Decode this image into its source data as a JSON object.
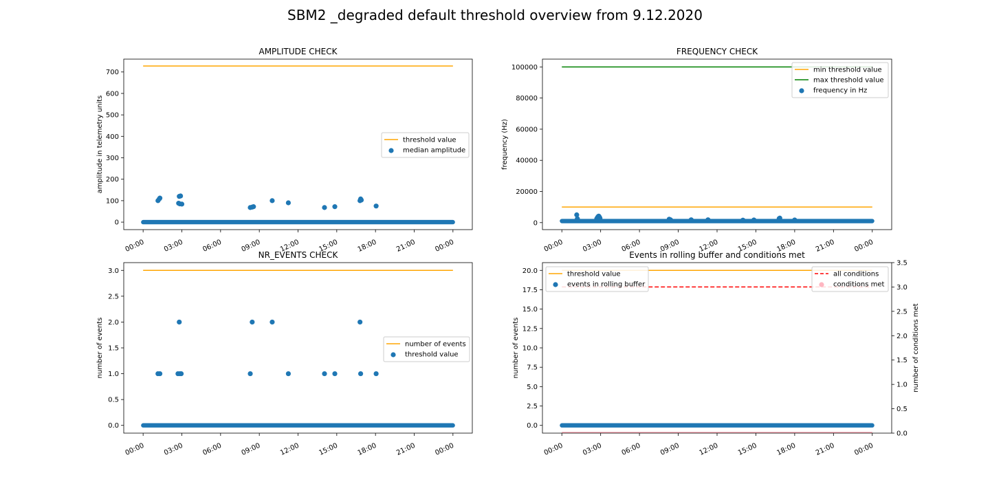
{
  "figure": {
    "suptitle": "SBM2 _degraded default threshold overview from 9.12.2020"
  },
  "chart_data": [
    {
      "id": "amp",
      "type": "scatter",
      "title": "AMPLITUDE CHECK",
      "xlabel": "",
      "ylabel": "amplitude in telemetry units",
      "x_ticks": [
        "00:00",
        "03:00",
        "06:00",
        "09:00",
        "12:00",
        "15:00",
        "18:00",
        "21:00",
        "00:00"
      ],
      "xlim_hours": [
        -1.5,
        25.5
      ],
      "ylim": [
        -35,
        760
      ],
      "y_ticks": [
        0,
        100,
        200,
        300,
        400,
        500,
        600,
        700
      ],
      "legend_position": "center right",
      "series": [
        {
          "name": "threshold value",
          "kind": "line",
          "color": "#ffa500",
          "x_hours": [
            0,
            24
          ],
          "y": [
            728,
            728
          ]
        },
        {
          "name": "median amplitude",
          "kind": "scatter",
          "color": "#1f77b4",
          "baseline": 0,
          "points": [
            [
              1.15,
              100
            ],
            [
              1.25,
              108
            ],
            [
              1.3,
              112
            ],
            [
              2.75,
              88
            ],
            [
              2.8,
              120
            ],
            [
              2.85,
              85
            ],
            [
              2.9,
              122
            ],
            [
              3.0,
              84
            ],
            [
              8.3,
              68
            ],
            [
              8.45,
              70
            ],
            [
              8.55,
              72
            ],
            [
              10.0,
              100
            ],
            [
              11.25,
              90
            ],
            [
              14.05,
              68
            ],
            [
              14.85,
              72
            ],
            [
              16.8,
              100
            ],
            [
              16.85,
              108
            ],
            [
              16.9,
              103
            ],
            [
              18.05,
              75
            ]
          ]
        }
      ]
    },
    {
      "id": "freq",
      "type": "scatter",
      "title": "FREQUENCY CHECK",
      "xlabel": "",
      "ylabel": "frequency (Hz)",
      "x_ticks": [
        "00:00",
        "03:00",
        "06:00",
        "09:00",
        "12:00",
        "15:00",
        "18:00",
        "21:00",
        "00:00"
      ],
      "xlim_hours": [
        -1.5,
        25.5
      ],
      "ylim": [
        -4500,
        105000
      ],
      "y_ticks": [
        0,
        20000,
        40000,
        60000,
        80000,
        100000
      ],
      "legend_position": "upper right",
      "series": [
        {
          "name": "min threshold value",
          "kind": "line",
          "color": "#ffa500",
          "x_hours": [
            0,
            24
          ],
          "y": [
            10000,
            10000
          ]
        },
        {
          "name": "max threshold value",
          "kind": "line",
          "color": "#008000",
          "x_hours": [
            0,
            24
          ],
          "y": [
            100000,
            100000
          ]
        },
        {
          "name": "frequency in Hz",
          "kind": "scatter",
          "color": "#1f77b4",
          "baseline": 1000,
          "points": [
            [
              1.15,
              5000
            ],
            [
              1.2,
              2500
            ],
            [
              2.7,
              2500
            ],
            [
              2.75,
              3200
            ],
            [
              2.8,
              3800
            ],
            [
              2.85,
              4200
            ],
            [
              2.9,
              3600
            ],
            [
              2.95,
              2800
            ],
            [
              8.3,
              2200
            ],
            [
              8.4,
              1800
            ],
            [
              10.0,
              1800
            ],
            [
              11.3,
              1800
            ],
            [
              14.0,
              1600
            ],
            [
              14.85,
              1700
            ],
            [
              16.8,
              2600
            ],
            [
              16.85,
              2900
            ],
            [
              18.0,
              1700
            ]
          ]
        }
      ]
    },
    {
      "id": "nr",
      "type": "scatter",
      "title": "NR_EVENTS CHECK",
      "xlabel": "",
      "ylabel": "number of events",
      "x_ticks": [
        "00:00",
        "03:00",
        "06:00",
        "09:00",
        "12:00",
        "15:00",
        "18:00",
        "21:00",
        "00:00"
      ],
      "xlim_hours": [
        -1.5,
        25.5
      ],
      "ylim": [
        -0.15,
        3.15
      ],
      "y_ticks": [
        0.0,
        0.5,
        1.0,
        1.5,
        2.0,
        2.5,
        3.0
      ],
      "legend_position": "center right",
      "series": [
        {
          "name": "number of events",
          "kind": "line",
          "color": "#ffa500",
          "x_hours": [
            0,
            24
          ],
          "y": [
            3,
            3
          ]
        },
        {
          "name": "threshold value",
          "kind": "scatter",
          "color": "#1f77b4",
          "baseline": 0,
          "points": [
            [
              1.15,
              1
            ],
            [
              1.3,
              1
            ],
            [
              2.7,
              1
            ],
            [
              2.8,
              2
            ],
            [
              2.85,
              1
            ],
            [
              2.95,
              1
            ],
            [
              8.3,
              1
            ],
            [
              8.45,
              2
            ],
            [
              10.0,
              2
            ],
            [
              11.25,
              1
            ],
            [
              14.05,
              1
            ],
            [
              14.85,
              1
            ],
            [
              16.8,
              2
            ],
            [
              16.85,
              1
            ],
            [
              18.05,
              1
            ]
          ]
        }
      ]
    },
    {
      "id": "roll",
      "type": "scatter",
      "title": "Events in rolling buffer and conditions met",
      "xlabel": "",
      "ylabel": "number of events",
      "ylabel_right": "number of conditions met",
      "x_ticks": [
        "00:00",
        "03:00",
        "06:00",
        "09:00",
        "12:00",
        "15:00",
        "18:00",
        "21:00",
        "00:00"
      ],
      "xlim_hours": [
        -1.5,
        25.5
      ],
      "ylim": [
        -1,
        21
      ],
      "y_ticks": [
        0.0,
        2.5,
        5.0,
        7.5,
        10.0,
        12.5,
        15.0,
        17.5,
        20.0
      ],
      "ylim_right": [
        0,
        3.5
      ],
      "y_ticks_right": [
        0.0,
        0.5,
        1.0,
        1.5,
        2.0,
        2.5,
        3.0,
        3.5
      ],
      "legend_position": "upper left",
      "legend_right_position": "upper right",
      "series": [
        {
          "name": "threshold value",
          "kind": "line",
          "color": "#ffa500",
          "x_hours": [
            0,
            24
          ],
          "y": [
            20,
            20
          ]
        },
        {
          "name": "events in rolling buffer",
          "kind": "scatter",
          "color": "#1f77b4",
          "baseline": 0,
          "points": []
        }
      ],
      "series_right": [
        {
          "name": "all conditions",
          "kind": "dashed-line",
          "color": "#ff0000",
          "x_hours": [
            0,
            24
          ],
          "y": [
            3,
            3
          ]
        },
        {
          "name": "conditions met",
          "kind": "scatter",
          "color": "#ffb6c1",
          "baseline": 0,
          "points": []
        }
      ]
    }
  ]
}
